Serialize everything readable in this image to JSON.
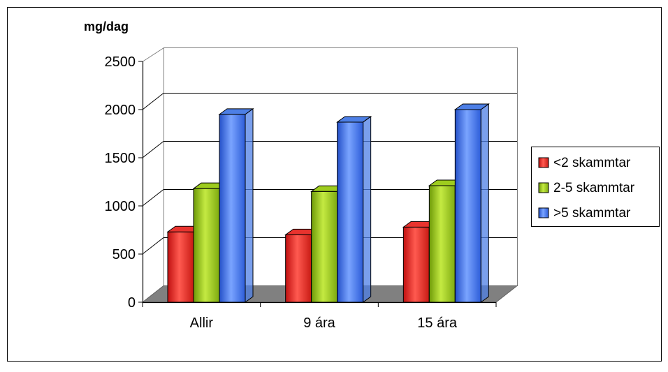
{
  "chart_data": {
    "type": "bar",
    "style": "3d-clustered",
    "ylabel": "mg/dag",
    "ylim": [
      0,
      2500
    ],
    "yticks": [
      "0",
      "500",
      "1000",
      "1500",
      "2000",
      "2500"
    ],
    "categories": [
      "Allir",
      "9 ára",
      "15 ára"
    ],
    "grid": true,
    "legend_position": "right",
    "series": [
      {
        "name": "<2 skammtar",
        "values": [
          730,
          700,
          780
        ],
        "color": "#e8332e"
      },
      {
        "name": "2-5 skammtar",
        "values": [
          1180,
          1150,
          1210
        ],
        "color": "#9ecc1e"
      },
      {
        "name": ">5 skammtar",
        "values": [
          1950,
          1870,
          2000
        ],
        "color": "#4d7fe6"
      }
    ]
  }
}
